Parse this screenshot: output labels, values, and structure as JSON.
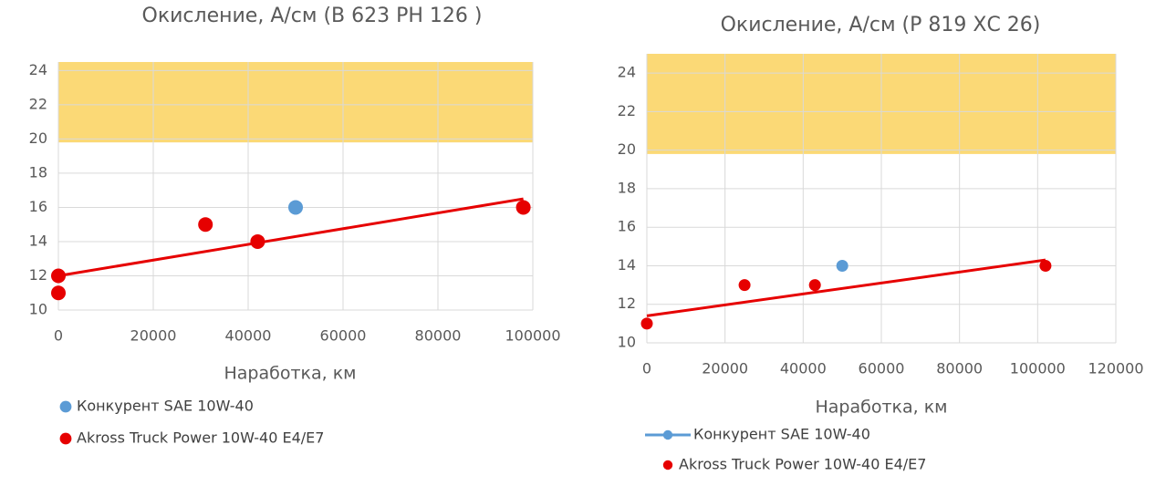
{
  "chart_data": [
    {
      "type": "scatter",
      "title": "Окисление, А/см (В 623 РН 126 )",
      "x_label": "Наработка, км",
      "xlim": [
        0,
        100000
      ],
      "xticks": [
        0,
        20000,
        40000,
        60000,
        80000,
        100000
      ],
      "ylim": [
        10,
        24.5
      ],
      "yticks": [
        10,
        12,
        14,
        16,
        18,
        20,
        22,
        24
      ],
      "grid": true,
      "band": {
        "from": 19.8,
        "to": 24.5,
        "color": "#fbd976"
      },
      "series": [
        {
          "name": "Конкурент SAE 10W-40",
          "color": "#5b9bd5",
          "legend_marker": "dot",
          "x": [
            50000
          ],
          "values": [
            16
          ]
        },
        {
          "name": "Akross Truck Power 10W-40 E4/E7",
          "color": "#e60000",
          "legend_marker": "dot",
          "x": [
            0,
            0,
            31000,
            42000,
            98000
          ],
          "values": [
            12,
            11,
            15,
            14,
            16
          ]
        }
      ],
      "trendline": {
        "color": "#e60000",
        "x": [
          0,
          98000
        ],
        "values": [
          12,
          16.5
        ]
      }
    },
    {
      "type": "scatter",
      "title": "Окисление, А/см (Р 819 ХС 26)",
      "x_label": "Наработка, км",
      "xlim": [
        0,
        120000
      ],
      "xticks": [
        0,
        20000,
        40000,
        60000,
        80000,
        100000,
        120000
      ],
      "ylim": [
        10,
        25
      ],
      "yticks": [
        10,
        12,
        14,
        16,
        18,
        20,
        22,
        24
      ],
      "grid": true,
      "band": {
        "from": 19.8,
        "to": 25,
        "color": "#fbd976"
      },
      "series": [
        {
          "name": "Конкурент SAE 10W-40",
          "color": "#5b9bd5",
          "legend_marker": "line",
          "x": [
            50000
          ],
          "values": [
            14
          ]
        },
        {
          "name": "Akross Truck Power 10W-40 E4/E7",
          "color": "#e60000",
          "legend_marker": "dot",
          "x": [
            0,
            25000,
            43000,
            102000
          ],
          "values": [
            11,
            13,
            13,
            14
          ]
        }
      ],
      "trendline": {
        "color": "#e60000",
        "x": [
          0,
          102000
        ],
        "values": [
          11.4,
          14.3
        ]
      }
    }
  ]
}
